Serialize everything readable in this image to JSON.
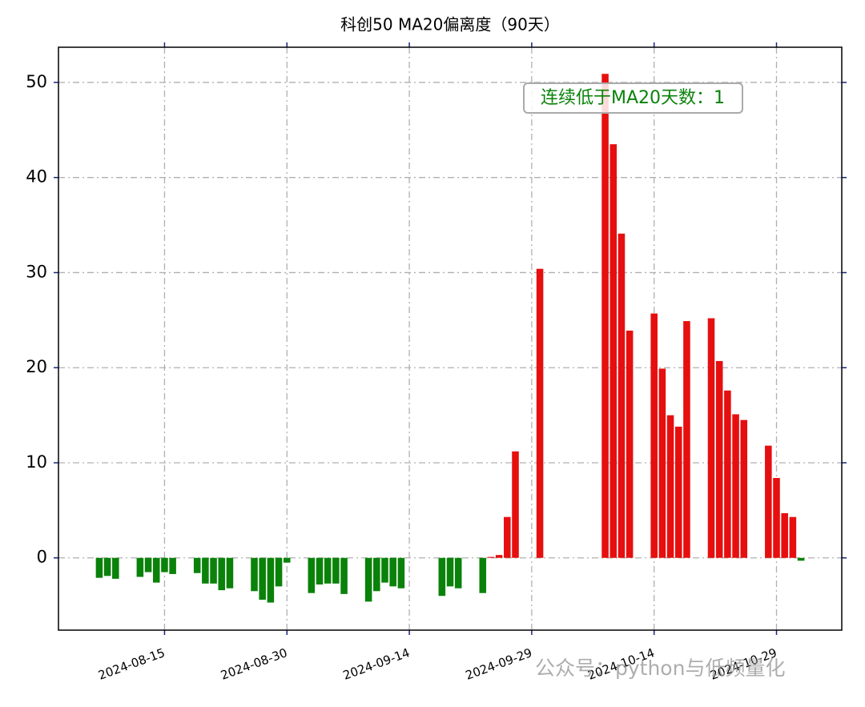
{
  "chart_data": {
    "type": "bar",
    "title": "科创50 MA20偏离度（90天）",
    "annotation": "连续低于MA20天数：1",
    "watermark": "公众号：python与低频量化",
    "x": [
      "2024-08-07",
      "2024-08-08",
      "2024-08-09",
      "2024-08-12",
      "2024-08-13",
      "2024-08-14",
      "2024-08-15",
      "2024-08-16",
      "2024-08-19",
      "2024-08-20",
      "2024-08-21",
      "2024-08-22",
      "2024-08-23",
      "2024-08-26",
      "2024-08-27",
      "2024-08-28",
      "2024-08-29",
      "2024-08-30",
      "2024-09-02",
      "2024-09-03",
      "2024-09-04",
      "2024-09-05",
      "2024-09-06",
      "2024-09-09",
      "2024-09-10",
      "2024-09-11",
      "2024-09-12",
      "2024-09-13",
      "2024-09-18",
      "2024-09-19",
      "2024-09-20",
      "2024-09-23",
      "2024-09-24",
      "2024-09-25",
      "2024-09-26",
      "2024-09-27",
      "2024-09-30",
      "2024-10-08",
      "2024-10-09",
      "2024-10-10",
      "2024-10-11",
      "2024-10-14",
      "2024-10-15",
      "2024-10-16",
      "2024-10-17",
      "2024-10-18",
      "2024-10-21",
      "2024-10-22",
      "2024-10-23",
      "2024-10-24",
      "2024-10-25",
      "2024-10-28",
      "2024-10-29",
      "2024-10-30",
      "2024-10-31",
      "2024-11-01"
    ],
    "values": [
      -2.1,
      -1.9,
      -2.2,
      -2.0,
      -1.5,
      -2.6,
      -1.5,
      -1.7,
      -1.6,
      -2.7,
      -2.7,
      -3.4,
      -3.2,
      -3.5,
      -4.4,
      -4.7,
      -3.0,
      -0.5,
      -3.7,
      -2.8,
      -2.7,
      -2.7,
      -3.8,
      -4.6,
      -3.5,
      -2.6,
      -3.0,
      -3.2,
      -4.0,
      -3.0,
      -3.2,
      -3.7,
      0.1,
      0.3,
      4.3,
      11.2,
      30.4,
      50.9,
      43.5,
      34.1,
      23.9,
      25.7,
      19.9,
      15.0,
      13.8,
      24.9,
      25.2,
      20.7,
      17.6,
      15.1,
      14.5,
      11.8,
      8.4,
      4.7,
      4.3,
      -0.3
    ],
    "positive_color": "#e60f0f",
    "negative_color": "#0a820a",
    "xlim": [
      "2024-08-02",
      "2024-11-06"
    ],
    "xticks": [
      "2024-08-15",
      "2024-08-30",
      "2024-09-14",
      "2024-09-29",
      "2024-10-14",
      "2024-10-29"
    ],
    "ylim": [
      -7.6,
      53.7
    ],
    "yticks": [
      0,
      10,
      20,
      30,
      40,
      50
    ],
    "grid": true
  }
}
